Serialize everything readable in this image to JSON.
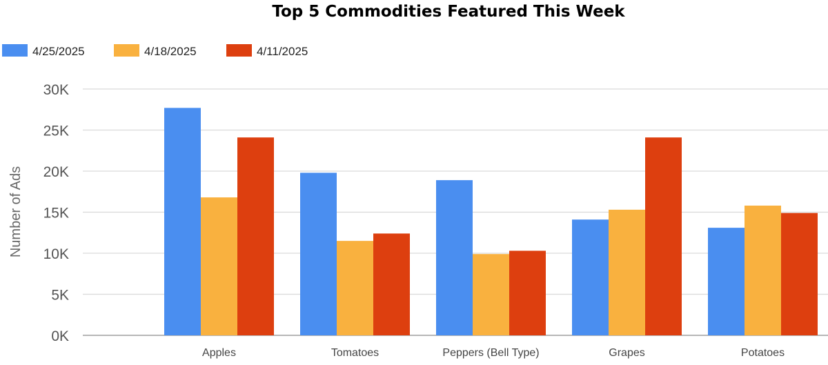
{
  "chart_data": {
    "type": "bar",
    "title": "Top 5 Commodities Featured This Week",
    "ylabel": "Number of Ads",
    "xlabel": "",
    "categories": [
      "Apples",
      "Tomatoes",
      "Peppers (Bell Type)",
      "Grapes",
      "Potatoes"
    ],
    "series": [
      {
        "name": "4/25/2025",
        "color": "#4a8ef0",
        "values": [
          27700,
          19800,
          18900,
          14100,
          13100
        ]
      },
      {
        "name": "4/18/2025",
        "color": "#f9b13f",
        "values": [
          16800,
          11500,
          9900,
          15300,
          15800
        ]
      },
      {
        "name": "4/11/2025",
        "color": "#dd3f0f",
        "values": [
          24100,
          12400,
          10300,
          24100,
          14900
        ]
      }
    ],
    "ylim": [
      0,
      30000
    ],
    "yticks": [
      0,
      5000,
      10000,
      15000,
      20000,
      25000,
      30000
    ],
    "ytick_labels": [
      "0K",
      "5K",
      "10K",
      "15K",
      "20K",
      "25K",
      "30K"
    ],
    "grid": true,
    "legend_position": "top-left"
  }
}
